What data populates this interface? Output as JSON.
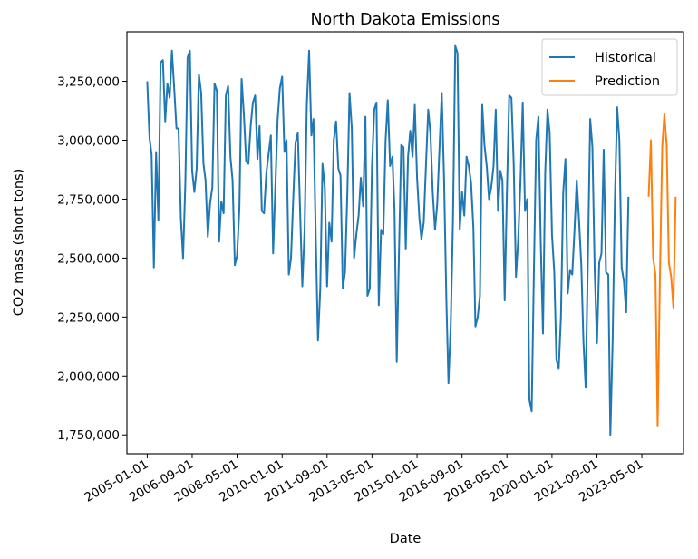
{
  "chart_data": {
    "type": "line",
    "title": "North Dakota Emissions",
    "xlabel": "Date",
    "ylabel": "CO2 mass (short tons)",
    "x_ticks": [
      "2005-01-01",
      "2006-09-01",
      "2008-05-01",
      "2010-01-01",
      "2011-09-01",
      "2013-05-01",
      "2015-01-01",
      "2016-09-01",
      "2018-05-01",
      "2020-01-01",
      "2021-09-01",
      "2023-05-01"
    ],
    "y_ticks": [
      "1,750,000",
      "2,000,000",
      "2,250,000",
      "2,500,000",
      "2,750,000",
      "3,000,000",
      "3,250,000"
    ],
    "y_tick_values": [
      1750000,
      2000000,
      2250000,
      2500000,
      2750000,
      3000000,
      3250000
    ],
    "xlim": [
      "2004-04-01",
      "2024-11-15"
    ],
    "ylim": [
      1670000,
      3460000
    ],
    "grid": false,
    "legend_position": "top-right",
    "series": [
      {
        "name": "Historical",
        "color": "#1f77b4",
        "start": "2005-01-01",
        "frequency": "monthly",
        "values": [
          3250000,
          3010000,
          2940000,
          2460000,
          2950000,
          2660000,
          3330000,
          3340000,
          3080000,
          3240000,
          3180000,
          3380000,
          3220000,
          3050000,
          3050000,
          2670000,
          2500000,
          2820000,
          3350000,
          3380000,
          2870000,
          2780000,
          2880000,
          3280000,
          3200000,
          2900000,
          2830000,
          2590000,
          2730000,
          2800000,
          3240000,
          3210000,
          2570000,
          2740000,
          2690000,
          3190000,
          3230000,
          2930000,
          2830000,
          2470000,
          2510000,
          2710000,
          3260000,
          3110000,
          2910000,
          2900000,
          3060000,
          3160000,
          3190000,
          2920000,
          3060000,
          2700000,
          2690000,
          2860000,
          2940000,
          3020000,
          2520000,
          2800000,
          3090000,
          3220000,
          3270000,
          2950000,
          3000000,
          2430000,
          2500000,
          2760000,
          2990000,
          3030000,
          2700000,
          2380000,
          2620000,
          3150000,
          3380000,
          3020000,
          3090000,
          2590000,
          2150000,
          2370000,
          2900000,
          2800000,
          2380000,
          2650000,
          2570000,
          3000000,
          3080000,
          2880000,
          2850000,
          2370000,
          2440000,
          2770000,
          3200000,
          3050000,
          2500000,
          2600000,
          2680000,
          2840000,
          2720000,
          3100000,
          2340000,
          2370000,
          2890000,
          3130000,
          3160000,
          2300000,
          2620000,
          2600000,
          3000000,
          3170000,
          2890000,
          2930000,
          2710000,
          2060000,
          2520000,
          2980000,
          2970000,
          2540000,
          2930000,
          3040000,
          2930000,
          3150000,
          2840000,
          2670000,
          2580000,
          2650000,
          2890000,
          3130000,
          3030000,
          2780000,
          2620000,
          2730000,
          2970000,
          3200000,
          2840000,
          2330000,
          1970000,
          2220000,
          2660000,
          3400000,
          3370000,
          2620000,
          2780000,
          2680000,
          2930000,
          2890000,
          2820000,
          2630000,
          2210000,
          2250000,
          2340000,
          3150000,
          2980000,
          2890000,
          2750000,
          2800000,
          2890000,
          3130000,
          2700000,
          2870000,
          2830000,
          2320000,
          2780000,
          3190000,
          3180000,
          2900000,
          2420000,
          2580000,
          2830000,
          3160000,
          2700000,
          2750000,
          1900000,
          1850000,
          2440000,
          3000000,
          3100000,
          2580000,
          2180000,
          2860000,
          3130000,
          3030000,
          2600000,
          2440000,
          2070000,
          2030000,
          2250000,
          2780000,
          2920000,
          2350000,
          2450000,
          2430000,
          2620000,
          2830000,
          2660000,
          2470000,
          2150000,
          1950000,
          2500000,
          3090000,
          2970000,
          2450000,
          2140000,
          2480000,
          2520000,
          2960000,
          2440000,
          2430000,
          1750000,
          2150000,
          2740000,
          3140000,
          3000000,
          2460000,
          2400000,
          2270000,
          2760000
        ]
      },
      {
        "name": "Prediction",
        "color": "#ff7f0e",
        "start": "2023-08-01",
        "frequency": "monthly",
        "values": [
          2760000,
          3000000,
          2500000,
          2430000,
          1790000,
          2420000,
          2970000,
          3110000,
          2980000,
          2480000,
          2420000,
          2290000,
          2760000
        ]
      }
    ]
  }
}
